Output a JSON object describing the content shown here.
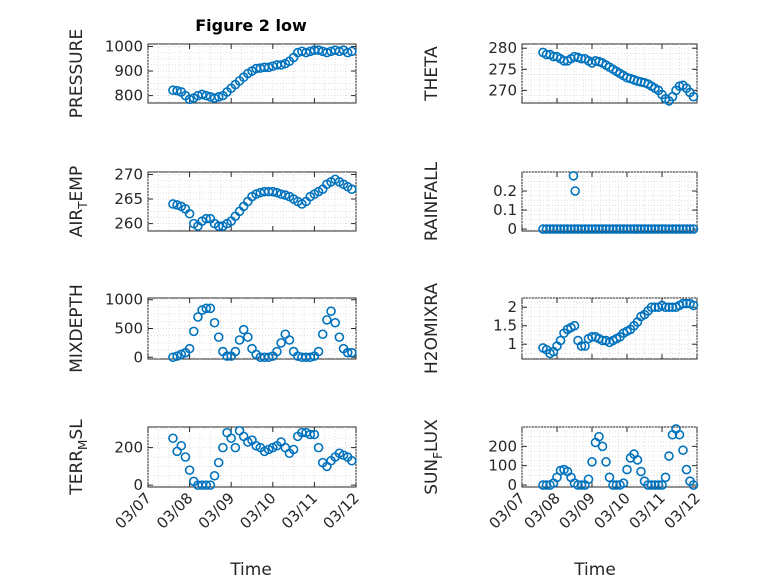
{
  "figure": {
    "title": "Figure 2 low"
  },
  "colors": {
    "marker": "#0072BD",
    "axes": "#262626",
    "grid": "#d9d9d9"
  },
  "chart_data": [
    {
      "type": "scatter",
      "position": "row1-left",
      "ylabel_main": "PRESSURE",
      "ylabel_sub": "",
      "ylabel_tail": "",
      "ylim": [
        770,
        1010
      ],
      "yticks": [
        800,
        900,
        1000
      ],
      "ytick_labels": [
        "800",
        "900",
        "1000"
      ],
      "xlim": [
        0,
        5
      ],
      "grid": true,
      "x": [
        0.6,
        0.7,
        0.8,
        0.9,
        1.0,
        1.1,
        1.2,
        1.3,
        1.4,
        1.5,
        1.6,
        1.7,
        1.8,
        1.9,
        2.0,
        2.1,
        2.2,
        2.3,
        2.4,
        2.5,
        2.6,
        2.7,
        2.8,
        2.9,
        3.0,
        3.1,
        3.2,
        3.3,
        3.4,
        3.5,
        3.6,
        3.7,
        3.8,
        3.9,
        4.0,
        4.1,
        4.2,
        4.3,
        4.4,
        4.5,
        4.6,
        4.7,
        4.8,
        4.9
      ],
      "values": [
        822,
        820,
        815,
        800,
        785,
        790,
        800,
        805,
        800,
        795,
        790,
        795,
        800,
        815,
        830,
        845,
        860,
        875,
        890,
        900,
        910,
        912,
        915,
        915,
        920,
        925,
        925,
        930,
        940,
        955,
        975,
        980,
        975,
        980,
        985,
        985,
        980,
        975,
        980,
        985,
        980,
        985,
        975,
        980
      ]
    },
    {
      "type": "scatter",
      "position": "row1-right",
      "ylabel_main": "THETA",
      "ylabel_sub": "",
      "ylabel_tail": "",
      "ylim": [
        267,
        281
      ],
      "yticks": [
        270,
        275,
        280
      ],
      "ytick_labels": [
        "270",
        "275",
        "280"
      ],
      "xlim": [
        0,
        5
      ],
      "grid": true,
      "x": [
        0.6,
        0.7,
        0.8,
        0.9,
        1.0,
        1.1,
        1.2,
        1.3,
        1.4,
        1.5,
        1.6,
        1.7,
        1.8,
        1.9,
        2.0,
        2.1,
        2.2,
        2.3,
        2.4,
        2.5,
        2.6,
        2.7,
        2.8,
        2.9,
        3.0,
        3.1,
        3.2,
        3.3,
        3.4,
        3.5,
        3.6,
        3.7,
        3.8,
        3.9,
        4.0,
        4.1,
        4.2,
        4.3,
        4.4,
        4.5,
        4.6,
        4.7,
        4.8,
        4.9
      ],
      "values": [
        279,
        278.5,
        278.5,
        278,
        278,
        277.5,
        277,
        277,
        277.5,
        278,
        277.8,
        277.5,
        277.5,
        277,
        276.5,
        277,
        276.8,
        276.5,
        276,
        275.5,
        275,
        274.5,
        274,
        273.5,
        273,
        272.8,
        272.5,
        272.2,
        272,
        271.8,
        271.5,
        271,
        270.5,
        270,
        269,
        268,
        267.5,
        268.5,
        270,
        271,
        271.2,
        270.5,
        269.5,
        268.5
      ]
    },
    {
      "type": "scatter",
      "position": "row2-left",
      "ylabel_main": "AIR",
      "ylabel_sub": "T",
      "ylabel_tail": "EMP",
      "ylim": [
        258.5,
        270.5
      ],
      "yticks": [
        260,
        265,
        270
      ],
      "ytick_labels": [
        "260",
        "265",
        "270"
      ],
      "xlim": [
        0,
        5
      ],
      "grid": true,
      "x": [
        0.6,
        0.7,
        0.8,
        0.9,
        1.0,
        1.1,
        1.2,
        1.3,
        1.4,
        1.5,
        1.6,
        1.7,
        1.8,
        1.9,
        2.0,
        2.1,
        2.2,
        2.3,
        2.4,
        2.5,
        2.6,
        2.7,
        2.8,
        2.9,
        3.0,
        3.1,
        3.2,
        3.3,
        3.4,
        3.5,
        3.6,
        3.7,
        3.8,
        3.9,
        4.0,
        4.1,
        4.2,
        4.3,
        4.4,
        4.5,
        4.6,
        4.7,
        4.8,
        4.9
      ],
      "values": [
        264,
        263.8,
        263.5,
        263,
        262,
        260,
        259.5,
        260.5,
        261,
        261,
        260,
        259.5,
        259.5,
        260,
        260.5,
        261.5,
        262.5,
        263.5,
        264.5,
        265.5,
        266,
        266.3,
        266.5,
        266.5,
        266.5,
        266.3,
        266,
        265.8,
        265.5,
        265,
        264.5,
        264,
        264.5,
        265.5,
        266,
        266.5,
        267,
        268,
        268.5,
        269,
        268.5,
        268,
        267.5,
        267
      ]
    },
    {
      "type": "scatter",
      "position": "row2-right",
      "ylabel_main": "RAINFALL",
      "ylabel_sub": "",
      "ylabel_tail": "",
      "ylim": [
        -0.01,
        0.3
      ],
      "yticks": [
        0,
        0.1,
        0.2
      ],
      "ytick_labels": [
        "0",
        "0.1",
        "0.2"
      ],
      "xlim": [
        0,
        5
      ],
      "grid": true,
      "x": [
        0.6,
        0.7,
        0.8,
        0.9,
        1.0,
        1.1,
        1.2,
        1.3,
        1.4,
        1.5,
        1.6,
        1.7,
        1.8,
        1.9,
        2.0,
        2.1,
        2.2,
        2.3,
        2.4,
        2.5,
        2.6,
        2.7,
        2.8,
        2.9,
        3.0,
        3.1,
        3.2,
        3.3,
        3.4,
        3.5,
        3.6,
        3.7,
        3.8,
        3.9,
        4.0,
        4.1,
        4.2,
        4.3,
        4.4,
        4.5,
        4.6,
        4.7,
        4.8,
        4.9,
        1.47,
        1.52
      ],
      "values": [
        0,
        0,
        0,
        0,
        0,
        0,
        0,
        0,
        0,
        0,
        0,
        0,
        0,
        0,
        0,
        0,
        0,
        0,
        0,
        0,
        0,
        0,
        0,
        0,
        0,
        0,
        0,
        0,
        0,
        0,
        0,
        0,
        0,
        0,
        0,
        0,
        0,
        0,
        0,
        0,
        0,
        0,
        0,
        0,
        0.28,
        0.2
      ]
    },
    {
      "type": "scatter",
      "position": "row3-left",
      "ylabel_main": "MIXDEPTH",
      "ylabel_sub": "",
      "ylabel_tail": "",
      "ylim": [
        -30,
        1030
      ],
      "yticks": [
        0,
        500,
        1000
      ],
      "ytick_labels": [
        "0",
        "500",
        "1000"
      ],
      "xlim": [
        0,
        5
      ],
      "grid": true,
      "x": [
        0.6,
        0.7,
        0.8,
        0.9,
        1.0,
        1.1,
        1.2,
        1.3,
        1.4,
        1.5,
        1.6,
        1.7,
        1.8,
        1.9,
        2.0,
        2.1,
        2.2,
        2.3,
        2.4,
        2.5,
        2.6,
        2.7,
        2.8,
        2.9,
        3.0,
        3.1,
        3.2,
        3.3,
        3.4,
        3.5,
        3.6,
        3.7,
        3.8,
        3.9,
        4.0,
        4.1,
        4.2,
        4.3,
        4.4,
        4.5,
        4.6,
        4.7,
        4.8,
        4.9
      ],
      "values": [
        0,
        20,
        50,
        80,
        150,
        450,
        700,
        820,
        850,
        850,
        600,
        350,
        100,
        20,
        20,
        100,
        300,
        480,
        350,
        150,
        50,
        0,
        0,
        0,
        20,
        100,
        250,
        400,
        300,
        100,
        20,
        0,
        0,
        0,
        20,
        100,
        400,
        650,
        800,
        600,
        350,
        150,
        80,
        80
      ]
    },
    {
      "type": "scatter",
      "position": "row3-right",
      "ylabel_main": "H2OMIXRA",
      "ylabel_sub": "",
      "ylabel_tail": "",
      "ylim": [
        0.6,
        2.25
      ],
      "yticks": [
        1,
        1.5,
        2
      ],
      "ytick_labels": [
        "1",
        "1.5",
        "2"
      ],
      "xlim": [
        0,
        5
      ],
      "grid": true,
      "x": [
        0.6,
        0.7,
        0.8,
        0.9,
        1.0,
        1.1,
        1.2,
        1.3,
        1.4,
        1.5,
        1.6,
        1.7,
        1.8,
        1.9,
        2.0,
        2.1,
        2.2,
        2.3,
        2.4,
        2.5,
        2.6,
        2.7,
        2.8,
        2.9,
        3.0,
        3.1,
        3.2,
        3.3,
        3.4,
        3.5,
        3.6,
        3.7,
        3.8,
        3.9,
        4.0,
        4.1,
        4.2,
        4.3,
        4.4,
        4.5,
        4.6,
        4.7,
        4.8,
        4.9
      ],
      "values": [
        0.9,
        0.85,
        0.75,
        0.8,
        0.95,
        1.1,
        1.3,
        1.4,
        1.45,
        1.5,
        1.1,
        0.95,
        0.95,
        1.15,
        1.2,
        1.2,
        1.15,
        1.1,
        1.1,
        1.05,
        1.1,
        1.15,
        1.2,
        1.3,
        1.35,
        1.4,
        1.5,
        1.6,
        1.75,
        1.8,
        1.9,
        2.0,
        2.0,
        2.0,
        2.05,
        2.0,
        2.0,
        2.0,
        2.0,
        2.05,
        2.1,
        2.1,
        2.1,
        2.05
      ]
    },
    {
      "type": "scatter",
      "position": "row4-left",
      "ylabel_main": "TERR",
      "ylabel_sub": "M",
      "ylabel_tail": "SL",
      "ylim": [
        -10,
        310
      ],
      "yticks": [
        0,
        200
      ],
      "ytick_labels": [
        "0",
        "200"
      ],
      "xlim": [
        0,
        5
      ],
      "grid": true,
      "x": [
        0.6,
        0.7,
        0.8,
        0.9,
        1.0,
        1.1,
        1.2,
        1.3,
        1.4,
        1.5,
        1.6,
        1.7,
        1.8,
        1.9,
        2.0,
        2.1,
        2.2,
        2.3,
        2.4,
        2.5,
        2.6,
        2.7,
        2.8,
        2.9,
        3.0,
        3.1,
        3.2,
        3.3,
        3.4,
        3.5,
        3.6,
        3.7,
        3.8,
        3.9,
        4.0,
        4.1,
        4.2,
        4.3,
        4.4,
        4.5,
        4.6,
        4.7,
        4.8,
        4.9
      ],
      "values": [
        250,
        180,
        210,
        150,
        80,
        20,
        0,
        0,
        0,
        0,
        50,
        120,
        200,
        280,
        250,
        200,
        290,
        260,
        230,
        240,
        210,
        200,
        180,
        190,
        200,
        210,
        230,
        200,
        170,
        190,
        260,
        280,
        280,
        270,
        270,
        200,
        120,
        100,
        130,
        150,
        170,
        160,
        150,
        130
      ]
    },
    {
      "type": "scatter",
      "position": "row4-right",
      "ylabel_main": "SUN",
      "ylabel_sub": "F",
      "ylabel_tail": "LUX",
      "ylim": [
        -10,
        300
      ],
      "yticks": [
        0,
        100,
        200
      ],
      "ytick_labels": [
        "0",
        "100",
        "200"
      ],
      "xlim": [
        0,
        5
      ],
      "grid": true,
      "x": [
        0.6,
        0.7,
        0.8,
        0.9,
        1.0,
        1.1,
        1.2,
        1.3,
        1.4,
        1.5,
        1.6,
        1.7,
        1.8,
        1.9,
        2.0,
        2.1,
        2.2,
        2.3,
        2.4,
        2.5,
        2.6,
        2.7,
        2.8,
        2.9,
        3.0,
        3.1,
        3.2,
        3.3,
        3.4,
        3.5,
        3.6,
        3.7,
        3.8,
        3.9,
        4.0,
        4.1,
        4.2,
        4.3,
        4.4,
        4.5,
        4.6,
        4.7,
        4.8,
        4.9
      ],
      "values": [
        0,
        0,
        0,
        10,
        40,
        75,
        80,
        70,
        40,
        10,
        0,
        0,
        0,
        30,
        120,
        220,
        250,
        200,
        120,
        40,
        0,
        0,
        0,
        10,
        80,
        140,
        160,
        130,
        70,
        20,
        0,
        0,
        0,
        0,
        0,
        40,
        150,
        260,
        290,
        260,
        180,
        80,
        20,
        0
      ]
    }
  ],
  "xaxis": {
    "tick_positions": [
      0,
      1,
      2,
      3,
      4,
      5
    ],
    "tick_labels": [
      "03/07",
      "03/08",
      "03/09",
      "03/10",
      "03/11",
      "03/12"
    ],
    "xlabel": "Time"
  }
}
